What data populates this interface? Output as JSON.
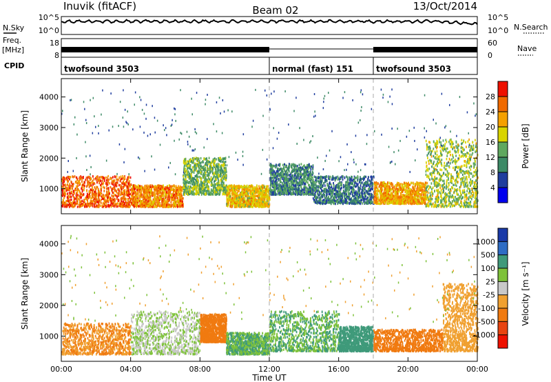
{
  "header": {
    "station": "Inuvik (fitACF)",
    "beam": "Beam 02",
    "date": "13/Oct/2014"
  },
  "strip_labels": {
    "nsky": "N.Sky",
    "freq_top": "Freq.",
    "freq_unit": "[MHz]",
    "cpid": "CPID",
    "nsearch": "N.Search",
    "nave": "Nave",
    "nsky_ticks": [
      "10^5",
      "10^0"
    ],
    "freq_ticks": [
      "18",
      "8"
    ],
    "nsearch_ticks": [
      "10^5",
      "10^0"
    ],
    "nave_ticks": [
      "60",
      "0"
    ]
  },
  "cpid_segments": [
    {
      "start_h": 0,
      "end_h": 12,
      "label": "twofsound 3503"
    },
    {
      "start_h": 12,
      "end_h": 18,
      "label": "normal (fast) 151"
    },
    {
      "start_h": 18,
      "end_h": 24,
      "label": "twofsound 3503"
    }
  ],
  "colors": {
    "power_scale": [
      "#0000ee",
      "#1f3d9e",
      "#3d8a66",
      "#5fa85f",
      "#d9d400",
      "#f5a000",
      "#f06a00",
      "#ee1100"
    ],
    "velocity_scale": [
      "#1a3aa8",
      "#2e6cc4",
      "#3f9a7a",
      "#7ec23a",
      "#c8c8c8",
      "#f0a030",
      "#f07a10",
      "#e84410",
      "#ee1100"
    ],
    "scan_lines": "#aaaaaa"
  },
  "chart_data": [
    {
      "type": "heatmap",
      "panel": "power",
      "ylabel": "Slant Range [km]",
      "x_range_hours": [
        0,
        24
      ],
      "xticks": [
        "00:00",
        "04:00",
        "08:00",
        "12:00",
        "16:00",
        "20:00",
        "00:00"
      ],
      "ylim": [
        180,
        4600
      ],
      "yticks": [
        1000,
        2000,
        3000,
        4000
      ],
      "colorbar": {
        "label": "Power [dB]",
        "ticks": [
          4,
          8,
          12,
          16,
          20,
          24,
          28
        ],
        "range": [
          0,
          32
        ]
      },
      "echo_regions": [
        {
          "t0": 0,
          "t1": 4,
          "r0": 400,
          "r1": 1400,
          "level": 26
        },
        {
          "t0": 4,
          "t1": 7,
          "r0": 400,
          "r1": 1100,
          "level": 24
        },
        {
          "t0": 7,
          "t1": 9.5,
          "r0": 800,
          "r1": 2000,
          "level": 14
        },
        {
          "t0": 9.5,
          "t1": 12,
          "r0": 400,
          "r1": 1100,
          "level": 20
        },
        {
          "t0": 12,
          "t1": 14.5,
          "r0": 800,
          "r1": 1800,
          "level": 10
        },
        {
          "t0": 14.5,
          "t1": 18,
          "r0": 500,
          "r1": 1400,
          "level": 9
        },
        {
          "t0": 18,
          "t1": 21,
          "r0": 500,
          "r1": 1200,
          "level": 22
        },
        {
          "t0": 21,
          "t1": 24,
          "r0": 400,
          "r1": 2600,
          "level": 16
        }
      ]
    },
    {
      "type": "heatmap",
      "panel": "velocity",
      "xlabel": "Time UT",
      "ylabel": "Slant Range [km]",
      "x_range_hours": [
        0,
        24
      ],
      "xticks": [
        "00:00",
        "04:00",
        "08:00",
        "12:00",
        "16:00",
        "20:00",
        "00:00"
      ],
      "ylim": [
        180,
        4600
      ],
      "yticks": [
        1000,
        2000,
        3000,
        4000
      ],
      "colorbar": {
        "label": "Velocity [m s⁻¹]",
        "ticks": [
          "1000",
          "500",
          "100",
          "25",
          "-25",
          "-100",
          "-500",
          "-1000"
        ]
      },
      "echo_regions": [
        {
          "t0": 0,
          "t1": 4,
          "r0": 400,
          "r1": 1400,
          "level": -100
        },
        {
          "t0": 4,
          "t1": 8,
          "r0": 400,
          "r1": 1800,
          "level": 25
        },
        {
          "t0": 8,
          "t1": 9.5,
          "r0": 800,
          "r1": 1700,
          "level": -300
        },
        {
          "t0": 9.5,
          "t1": 12,
          "r0": 400,
          "r1": 1100,
          "level": 100
        },
        {
          "t0": 12,
          "t1": 16,
          "r0": 500,
          "r1": 1800,
          "level": 100
        },
        {
          "t0": 16,
          "t1": 18,
          "r0": 500,
          "r1": 1300,
          "level": 300
        },
        {
          "t0": 18,
          "t1": 22,
          "r0": 500,
          "r1": 1200,
          "level": -200
        },
        {
          "t0": 22,
          "t1": 24,
          "r0": 500,
          "r1": 2700,
          "level": -60
        }
      ]
    }
  ]
}
